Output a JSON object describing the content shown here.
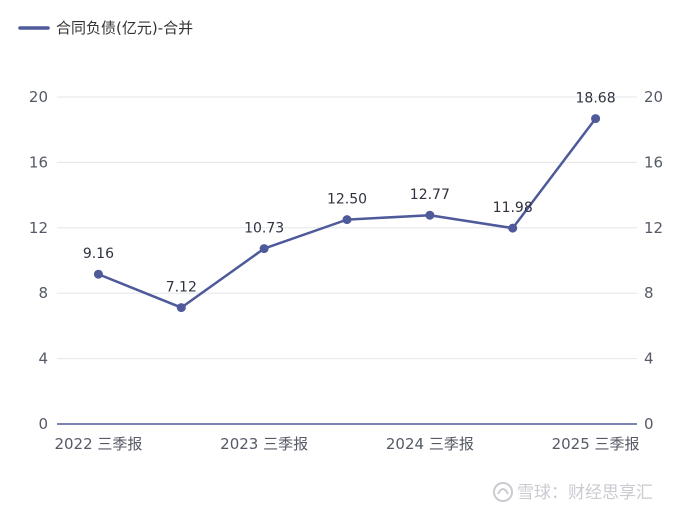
{
  "chart_data": {
    "type": "line",
    "title": "",
    "xlabel": "",
    "ylabel": "",
    "categories": [
      "2022 三季报",
      "",
      "2023 三季报",
      "",
      "2024 三季报",
      "",
      "2025 三季报"
    ],
    "series": [
      {
        "name": "合同负债(亿元)-合并",
        "values": [
          9.16,
          7.12,
          10.73,
          12.5,
          12.77,
          11.98,
          18.68
        ],
        "labels": [
          "9.16",
          "7.12",
          "10.73",
          "12.50",
          "12.77",
          "11.98",
          "18.68"
        ],
        "color": "#4e5a9a"
      }
    ],
    "ylim": [
      0,
      20
    ],
    "yticks": [
      0,
      4,
      8,
      12,
      16,
      20
    ],
    "ytick_labels": [
      "0",
      "4",
      "8",
      "12",
      "16",
      "20"
    ],
    "dual_y_axis": true,
    "grid": true,
    "legend_position": "top-left"
  },
  "watermark": {
    "text": "雪球：财经思享汇"
  }
}
